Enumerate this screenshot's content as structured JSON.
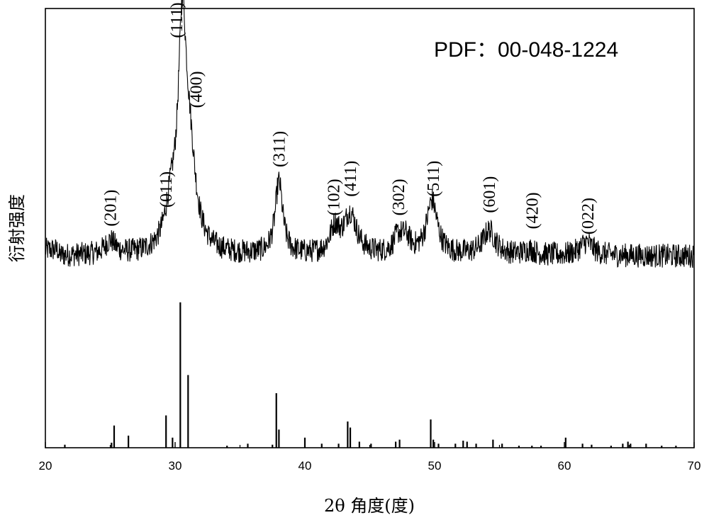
{
  "chart_data": {
    "type": "line",
    "xlabel": "2θ 角度(度)",
    "ylabel": "衍射强度",
    "xlim": [
      20,
      70
    ],
    "xticks": [
      "20",
      "30",
      "40",
      "50",
      "60",
      "70"
    ],
    "reference_label": "PDF：00-048-1224",
    "colors": {
      "line": "#000000",
      "axis": "#000000"
    },
    "background": 0.22,
    "noise_amp": 0.045,
    "peaks": [
      {
        "x": 25.0,
        "h": 0.05,
        "w": 0.5
      },
      {
        "x": 29.7,
        "h": 0.14,
        "w": 0.55
      },
      {
        "x": 30.55,
        "h": 0.75,
        "w": 0.38
      },
      {
        "x": 31.1,
        "h": 0.32,
        "w": 0.6
      },
      {
        "x": 38.0,
        "h": 0.27,
        "w": 0.35
      },
      {
        "x": 42.3,
        "h": 0.09,
        "w": 0.45
      },
      {
        "x": 43.5,
        "h": 0.15,
        "w": 0.6
      },
      {
        "x": 47.2,
        "h": 0.06,
        "w": 0.45
      },
      {
        "x": 47.8,
        "h": 0.05,
        "w": 0.4
      },
      {
        "x": 49.8,
        "h": 0.2,
        "w": 0.5
      },
      {
        "x": 54.2,
        "h": 0.09,
        "w": 0.6
      },
      {
        "x": 57.3,
        "h": 0.02,
        "w": 0.5
      },
      {
        "x": 61.7,
        "h": 0.05,
        "w": 0.6
      }
    ],
    "peak_labels": [
      {
        "x": 25.0,
        "y": 0.33,
        "text": "(201)"
      },
      {
        "x": 29.3,
        "y": 0.4,
        "text": "(011)"
      },
      {
        "x": 30.1,
        "y": 1.03,
        "text": "(111)"
      },
      {
        "x": 31.6,
        "y": 0.77,
        "text": "(400)"
      },
      {
        "x": 38.0,
        "y": 0.55,
        "text": "(311)"
      },
      {
        "x": 42.2,
        "y": 0.37,
        "text": "(102)"
      },
      {
        "x": 43.5,
        "y": 0.44,
        "text": "(411)"
      },
      {
        "x": 47.2,
        "y": 0.37,
        "text": "(302)"
      },
      {
        "x": 49.9,
        "y": 0.44,
        "text": "(511)"
      },
      {
        "x": 54.2,
        "y": 0.38,
        "text": "(601)"
      },
      {
        "x": 57.5,
        "y": 0.32,
        "text": "(420)"
      },
      {
        "x": 61.8,
        "y": 0.3,
        "text": "(022)"
      }
    ],
    "reference_lines": [
      {
        "x": 21.5,
        "h": 0.015
      },
      {
        "x": 25.1,
        "h": 0.025
      },
      {
        "x": 25.3,
        "h": 0.11
      },
      {
        "x": 26.4,
        "h": 0.06
      },
      {
        "x": 29.3,
        "h": 0.16
      },
      {
        "x": 29.8,
        "h": 0.05
      },
      {
        "x": 30.4,
        "h": 0.72
      },
      {
        "x": 31.0,
        "h": 0.36
      },
      {
        "x": 34.0,
        "h": 0.01
      },
      {
        "x": 35.6,
        "h": 0.02
      },
      {
        "x": 37.5,
        "h": 0.015
      },
      {
        "x": 37.8,
        "h": 0.27
      },
      {
        "x": 38.0,
        "h": 0.09
      },
      {
        "x": 40.0,
        "h": 0.05
      },
      {
        "x": 41.3,
        "h": 0.02
      },
      {
        "x": 42.6,
        "h": 0.02
      },
      {
        "x": 43.3,
        "h": 0.13
      },
      {
        "x": 43.5,
        "h": 0.1
      },
      {
        "x": 44.2,
        "h": 0.03
      },
      {
        "x": 45.1,
        "h": 0.02
      },
      {
        "x": 47.0,
        "h": 0.03
      },
      {
        "x": 47.3,
        "h": 0.04
      },
      {
        "x": 49.7,
        "h": 0.14
      },
      {
        "x": 49.9,
        "h": 0.04
      },
      {
        "x": 50.3,
        "h": 0.02
      },
      {
        "x": 51.6,
        "h": 0.02
      },
      {
        "x": 52.2,
        "h": 0.035
      },
      {
        "x": 52.5,
        "h": 0.03
      },
      {
        "x": 53.2,
        "h": 0.02
      },
      {
        "x": 54.5,
        "h": 0.04
      },
      {
        "x": 55.2,
        "h": 0.02
      },
      {
        "x": 56.5,
        "h": 0.01
      },
      {
        "x": 57.5,
        "h": 0.01
      },
      {
        "x": 58.2,
        "h": 0.01
      },
      {
        "x": 60.1,
        "h": 0.05
      },
      {
        "x": 61.4,
        "h": 0.02
      },
      {
        "x": 62.1,
        "h": 0.015
      },
      {
        "x": 63.6,
        "h": 0.01
      },
      {
        "x": 64.5,
        "h": 0.02
      },
      {
        "x": 64.9,
        "h": 0.03
      },
      {
        "x": 65.1,
        "h": 0.02
      },
      {
        "x": 66.3,
        "h": 0.02
      },
      {
        "x": 67.5,
        "h": 0.01
      },
      {
        "x": 68.6,
        "h": 0.01
      }
    ]
  }
}
